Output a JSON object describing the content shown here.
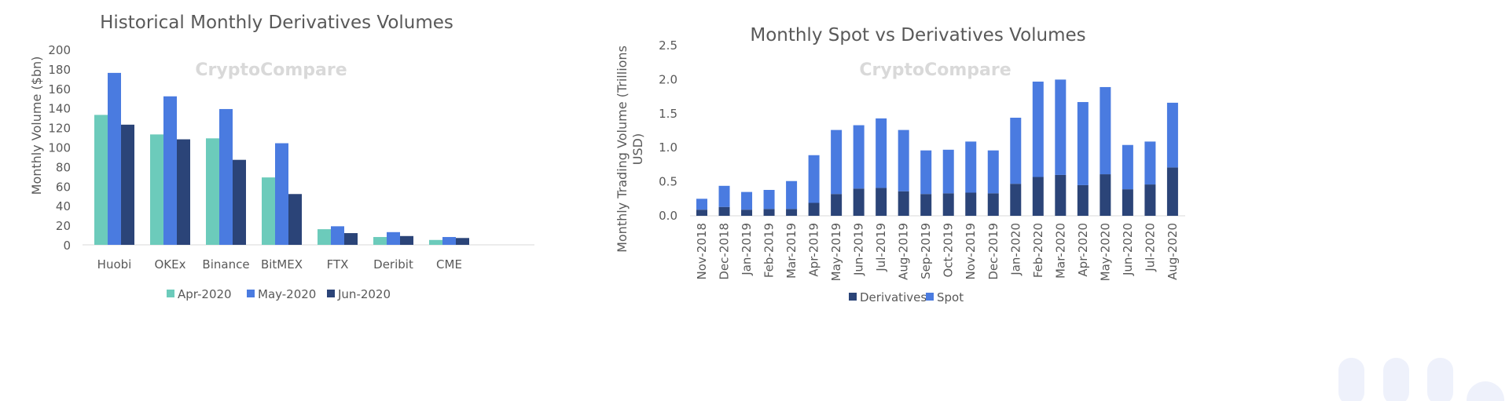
{
  "watermark": "CryptoCompare",
  "chart_data": [
    {
      "type": "bar",
      "title": "Historical Monthly Derivatives Volumes",
      "xlabel": "",
      "ylabel": "Monthly Volume ($bn)",
      "ylim": [
        0,
        200
      ],
      "yticks": [
        "0",
        "20",
        "40",
        "60",
        "80",
        "100",
        "120",
        "140",
        "160",
        "180",
        "200"
      ],
      "grid": false,
      "legend": "bottom",
      "categories": [
        "Huobi",
        "OKEx",
        "Binance",
        "BitMEX",
        "FTX",
        "Deribit",
        "CME"
      ],
      "series": [
        {
          "name": "Apr-2020",
          "color": "#6CCBBB",
          "values": [
            133,
            113,
            109,
            69,
            16,
            8,
            5
          ]
        },
        {
          "name": "May-2020",
          "color": "#4A7BE0",
          "values": [
            176,
            152,
            139,
            104,
            19,
            13,
            8
          ]
        },
        {
          "name": "Jun-2020",
          "color": "#2B4478",
          "values": [
            123,
            108,
            87,
            52,
            12,
            9,
            7
          ]
        }
      ]
    },
    {
      "type": "bar",
      "stacked": true,
      "title": "Monthly Spot vs Derivatives Volumes",
      "xlabel": "",
      "ylabel": "Monthly Trading Volume (Trillions USD)",
      "ylim": [
        0,
        2.5
      ],
      "yticks": [
        "0.0",
        "0.5",
        "1.0",
        "1.5",
        "2.0",
        "2.5"
      ],
      "grid": false,
      "legend": "bottom",
      "categories": [
        "Nov-2018",
        "Dec-2018",
        "Jan-2019",
        "Feb-2019",
        "Mar-2019",
        "Apr-2019",
        "May-2019",
        "Jun-2019",
        "Jul-2019",
        "Aug-2019",
        "Sep-2019",
        "Oct-2019",
        "Nov-2019",
        "Dec-2019",
        "Jan-2020",
        "Feb-2020",
        "Mar-2020",
        "Apr-2020",
        "May-2020",
        "Jun-2020",
        "Jul-2020",
        "Aug-2020"
      ],
      "series": [
        {
          "name": "Derivatives",
          "color": "#2B4478",
          "values": [
            0.09,
            0.13,
            0.09,
            0.1,
            0.1,
            0.19,
            0.32,
            0.4,
            0.41,
            0.36,
            0.32,
            0.33,
            0.34,
            0.33,
            0.47,
            0.57,
            0.6,
            0.45,
            0.61,
            0.39,
            0.46,
            0.71
          ]
        },
        {
          "name": "Spot",
          "color": "#4A7BE0",
          "values": [
            0.16,
            0.31,
            0.26,
            0.28,
            0.41,
            0.7,
            0.94,
            0.93,
            1.02,
            0.9,
            0.64,
            0.64,
            0.75,
            0.63,
            0.97,
            1.4,
            1.4,
            1.22,
            1.28,
            0.65,
            0.63,
            0.95
          ]
        }
      ]
    }
  ]
}
